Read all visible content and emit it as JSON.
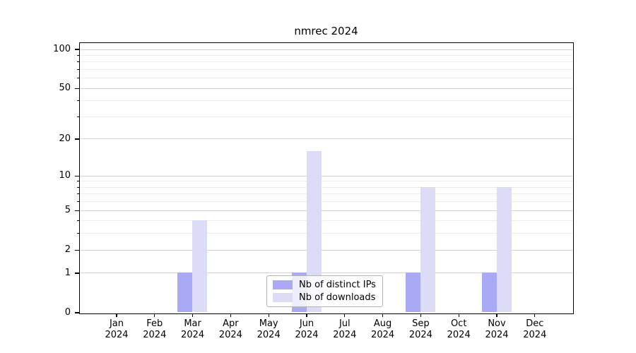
{
  "title": "nmrec 2024",
  "chart_data": {
    "type": "bar",
    "title": "nmrec 2024",
    "x_categories": [
      "Jan",
      "Feb",
      "Mar",
      "Apr",
      "May",
      "Jun",
      "Jul",
      "Aug",
      "Sep",
      "Oct",
      "Nov",
      "Dec"
    ],
    "x_year": "2024",
    "series": [
      {
        "name": "Nb of distinct IPs",
        "color": "#a9a9f5",
        "values": [
          0,
          0,
          1,
          0,
          0,
          1,
          0,
          0,
          1,
          0,
          1,
          0
        ]
      },
      {
        "name": "Nb of downloads",
        "color": "#dcdcf7",
        "values": [
          0,
          0,
          4,
          0,
          0,
          16,
          0,
          0,
          8,
          0,
          8,
          0
        ]
      }
    ],
    "yscale": "log1p",
    "ylim": [
      0,
      112
    ],
    "y_major_ticks": [
      0,
      1,
      2,
      5,
      10,
      20,
      50,
      100
    ],
    "y_tick_labels": [
      "0",
      "1",
      "2",
      "5",
      "10",
      "20",
      "50",
      "100"
    ],
    "y_minor_ticks": [
      3,
      4,
      6,
      7,
      8,
      9,
      30,
      40,
      60,
      70,
      80,
      90
    ],
    "grid": "on",
    "legend_position": "lower-center-inside",
    "colors": {
      "grid_major": "#d2d2d2",
      "grid_minor": "#ececec",
      "spine": "#000000",
      "background": "#ffffff"
    }
  },
  "legend": {
    "items": [
      {
        "label": "Nb of distinct IPs",
        "color": "#a9a9f5"
      },
      {
        "label": "Nb of downloads",
        "color": "#dcdcf7"
      }
    ]
  }
}
